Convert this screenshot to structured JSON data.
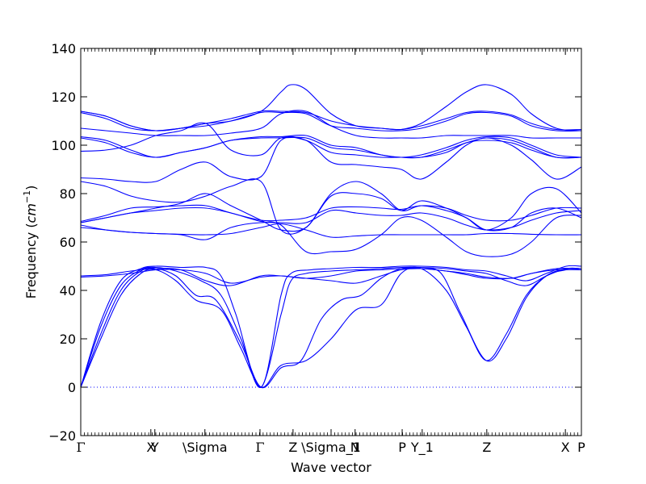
{
  "chart_data": {
    "type": "line",
    "title": "",
    "xlabel": "Wave vector",
    "ylabel": "Frequency ($cm^{-1}$)",
    "ylabel_parts": {
      "text": "Frequency (",
      "unit_base": "cm",
      "unit_exp": "−1",
      "close": ")"
    },
    "ylim": [
      -20,
      140
    ],
    "yticks": [
      -20,
      0,
      20,
      40,
      60,
      80,
      100,
      120,
      140
    ],
    "xlim": [
      0,
      1.0
    ],
    "high_symmetry_points": [
      {
        "label": "Γ",
        "x": 0.0
      },
      {
        "label": "X",
        "x": 0.14
      },
      {
        "label": "Y",
        "x": 0.148
      },
      {
        "label": "\\Sigma",
        "x": 0.248
      },
      {
        "label": "Γ",
        "x": 0.358
      },
      {
        "label": "Z",
        "x": 0.424
      },
      {
        "label": "\\Sigma_1",
        "x": 0.5
      },
      {
        "label": "N",
        "x": 0.548
      },
      {
        "label": "P",
        "x": 0.642
      },
      {
        "label": "Y_1",
        "x": 0.682
      },
      {
        "label": "Z",
        "x": 0.811
      },
      {
        "label": "X",
        "x": 0.968
      },
      {
        "label": "P",
        "x": 1.0
      }
    ],
    "zero_line": {
      "y": 0,
      "style": "dotted"
    },
    "line_color": "#0000ff",
    "grid": false,
    "legend": "none",
    "series": [
      {
        "x": [
          0.0,
          0.04,
          0.08,
          0.12,
          0.15,
          0.19,
          0.23,
          0.28,
          0.32,
          0.36,
          0.4,
          0.45,
          0.5,
          0.55,
          0.6,
          0.64,
          0.68,
          0.73,
          0.77,
          0.81,
          0.85,
          0.89,
          0.93,
          0.97,
          1.0
        ],
        "y": [
          0,
          20,
          38,
          47,
          48.5,
          44,
          36,
          32,
          16,
          0,
          9,
          11,
          20,
          32,
          34,
          47,
          49,
          40,
          25,
          11,
          22,
          38,
          46,
          48.5,
          48.5
        ]
      },
      {
        "x": [
          0.0,
          0.04,
          0.08,
          0.12,
          0.15,
          0.19,
          0.23,
          0.27,
          0.32,
          0.36,
          0.4,
          0.44,
          0.48,
          0.52,
          0.56,
          0.6,
          0.64,
          0.68,
          0.72,
          0.76,
          0.81,
          0.85,
          0.89,
          0.93,
          0.97,
          1.0
        ],
        "y": [
          0,
          22,
          40,
          48,
          49,
          46,
          38,
          36,
          18,
          0,
          8,
          11,
          28,
          36,
          38,
          45,
          49,
          49,
          47,
          30,
          11,
          20,
          37,
          46,
          49,
          49
        ]
      },
      {
        "x": [
          0.0,
          0.04,
          0.08,
          0.12,
          0.15,
          0.19,
          0.24,
          0.28,
          0.32,
          0.36,
          0.4,
          0.42,
          0.45,
          0.5,
          0.55,
          0.6,
          0.64,
          0.68,
          0.73,
          0.77,
          0.81,
          0.85,
          0.89,
          0.93,
          0.97,
          1.0
        ],
        "y": [
          0,
          25,
          42,
          48.5,
          49.5,
          48,
          44,
          38,
          20,
          0,
          30,
          44,
          47,
          48,
          48.5,
          49,
          49.5,
          49.5,
          49,
          48,
          47,
          44,
          42,
          46,
          49,
          49
        ]
      },
      {
        "x": [
          0.0,
          0.04,
          0.08,
          0.12,
          0.15,
          0.2,
          0.25,
          0.28,
          0.31,
          0.36,
          0.4,
          0.42,
          0.46,
          0.5,
          0.55,
          0.6,
          0.64,
          0.68,
          0.73,
          0.77,
          0.81,
          0.85,
          0.89,
          0.93,
          0.97,
          1.0
        ],
        "y": [
          0,
          27,
          44,
          49,
          50,
          49.5,
          49.5,
          46,
          30,
          0,
          38,
          47,
          48.5,
          49,
          49.5,
          49.5,
          50,
          50,
          49.5,
          48.5,
          48,
          46,
          44,
          47,
          50,
          50
        ]
      },
      {
        "x": [
          0.0,
          0.05,
          0.1,
          0.15,
          0.2,
          0.25,
          0.3,
          0.36,
          0.4,
          0.45,
          0.5,
          0.55,
          0.6,
          0.64,
          0.68,
          0.73,
          0.77,
          0.81,
          0.86,
          0.9,
          0.95,
          1.0
        ],
        "y": [
          45.5,
          46,
          47,
          48.5,
          48.5,
          47,
          43,
          45.5,
          46,
          45,
          46,
          48,
          48.5,
          49,
          49,
          48,
          46.5,
          45,
          45,
          47,
          48.5,
          48.5
        ]
      },
      {
        "x": [
          0.0,
          0.05,
          0.1,
          0.15,
          0.2,
          0.25,
          0.3,
          0.36,
          0.4,
          0.45,
          0.5,
          0.55,
          0.6,
          0.64,
          0.68,
          0.73,
          0.77,
          0.81,
          0.86,
          0.9,
          0.95,
          1.0
        ],
        "y": [
          46,
          46.5,
          48,
          49,
          48.5,
          44,
          42,
          46,
          46,
          45,
          44,
          43,
          46,
          48.5,
          49,
          48,
          47,
          45.5,
          45,
          47,
          49,
          49
        ]
      },
      {
        "x": [
          0.0,
          0.05,
          0.1,
          0.15,
          0.2,
          0.25,
          0.3,
          0.36,
          0.4,
          0.45,
          0.5,
          0.55,
          0.6,
          0.64,
          0.68,
          0.73,
          0.77,
          0.81,
          0.86,
          0.9,
          0.95,
          1.0
        ],
        "y": [
          66,
          65,
          64,
          63.5,
          63.2,
          63,
          63.5,
          66,
          67.5,
          65,
          62,
          62.5,
          63,
          63,
          63,
          63,
          63,
          63.5,
          63.5,
          63.2,
          63,
          63
        ]
      },
      {
        "x": [
          0.0,
          0.05,
          0.1,
          0.15,
          0.2,
          0.25,
          0.3,
          0.36,
          0.4,
          0.45,
          0.5,
          0.55,
          0.6,
          0.64,
          0.68,
          0.73,
          0.77,
          0.81,
          0.86,
          0.9,
          0.95,
          1.0
        ],
        "y": [
          67,
          65,
          64,
          63.5,
          63,
          61,
          66,
          68,
          67,
          56,
          56,
          57,
          63,
          70,
          69,
          62,
          56,
          54,
          55,
          60,
          70,
          71
        ]
      },
      {
        "x": [
          0.0,
          0.05,
          0.1,
          0.15,
          0.2,
          0.25,
          0.3,
          0.36,
          0.4,
          0.45,
          0.5,
          0.55,
          0.6,
          0.64,
          0.68,
          0.73,
          0.77,
          0.81,
          0.86,
          0.9,
          0.95,
          1.0
        ],
        "y": [
          68,
          70,
          72,
          73,
          74,
          74,
          72,
          68.5,
          68,
          68,
          73,
          72,
          71,
          71,
          72,
          70,
          67,
          65,
          66,
          69,
          72,
          73
        ]
      },
      {
        "x": [
          0.0,
          0.05,
          0.1,
          0.15,
          0.2,
          0.25,
          0.3,
          0.36,
          0.4,
          0.45,
          0.5,
          0.55,
          0.6,
          0.64,
          0.68,
          0.73,
          0.77,
          0.81,
          0.86,
          0.9,
          0.95,
          1.0
        ],
        "y": [
          68.5,
          71,
          74,
          74.5,
          75,
          75,
          72,
          69,
          69,
          70,
          74,
          74.5,
          74,
          73.5,
          75,
          74,
          71,
          69,
          69,
          71,
          74,
          74
        ]
      },
      {
        "x": [
          0.0,
          0.05,
          0.1,
          0.15,
          0.2,
          0.25,
          0.3,
          0.36,
          0.4,
          0.45,
          0.5,
          0.55,
          0.6,
          0.64,
          0.68,
          0.73,
          0.77,
          0.81,
          0.86,
          0.9,
          0.95,
          1.0
        ],
        "y": [
          68,
          70,
          72,
          74,
          76,
          80,
          75,
          69,
          65,
          66,
          79,
          80,
          78,
          73,
          77,
          74,
          70,
          65,
          70,
          80,
          82,
          72
        ]
      },
      {
        "x": [
          0.0,
          0.05,
          0.1,
          0.15,
          0.2,
          0.25,
          0.3,
          0.36,
          0.4,
          0.45,
          0.5,
          0.55,
          0.6,
          0.64,
          0.68,
          0.73,
          0.77,
          0.81,
          0.86,
          0.9,
          0.95,
          1.0
        ],
        "y": [
          85,
          83,
          79,
          77,
          76.5,
          79,
          83,
          85,
          65,
          66,
          80,
          85,
          80,
          73,
          75,
          73,
          70,
          65,
          66,
          72,
          74,
          70
        ]
      },
      {
        "x": [
          0.0,
          0.05,
          0.1,
          0.15,
          0.2,
          0.25,
          0.3,
          0.36,
          0.4,
          0.45,
          0.5,
          0.55,
          0.6,
          0.64,
          0.68,
          0.73,
          0.77,
          0.81,
          0.86,
          0.9,
          0.95,
          1.0
        ],
        "y": [
          86.5,
          86,
          85,
          85,
          90,
          93,
          87,
          87,
          102,
          102,
          93,
          92,
          91,
          90,
          86,
          93,
          100,
          103,
          100,
          94,
          86,
          91
        ]
      },
      {
        "x": [
          0.0,
          0.05,
          0.1,
          0.15,
          0.2,
          0.25,
          0.3,
          0.36,
          0.4,
          0.45,
          0.5,
          0.55,
          0.6,
          0.64,
          0.68,
          0.73,
          0.77,
          0.81,
          0.86,
          0.9,
          0.95,
          1.0
        ],
        "y": [
          97.5,
          98,
          100,
          104,
          106,
          109,
          98,
          96,
          103,
          102,
          97,
          96,
          95,
          95,
          95,
          97,
          101,
          102,
          101,
          98,
          95,
          95
        ]
      },
      {
        "x": [
          0.0,
          0.05,
          0.1,
          0.15,
          0.2,
          0.25,
          0.3,
          0.36,
          0.4,
          0.45,
          0.5,
          0.55,
          0.6,
          0.64,
          0.68,
          0.73,
          0.77,
          0.81,
          0.86,
          0.9,
          0.95,
          1.0
        ],
        "y": [
          103,
          101,
          97,
          95,
          97,
          99,
          102,
          103,
          103,
          103,
          99,
          98,
          96,
          95,
          95,
          98,
          101,
          103,
          102,
          99,
          95,
          95
        ]
      },
      {
        "x": [
          0.0,
          0.05,
          0.1,
          0.15,
          0.2,
          0.25,
          0.3,
          0.36,
          0.4,
          0.45,
          0.5,
          0.55,
          0.6,
          0.64,
          0.68,
          0.73,
          0.77,
          0.81,
          0.86,
          0.9,
          0.95,
          1.0
        ],
        "y": [
          103.5,
          102,
          98,
          95,
          97,
          99,
          102,
          103.5,
          103.5,
          104,
          100,
          99,
          96,
          95,
          96,
          99,
          102,
          103.5,
          103,
          100,
          96,
          95
        ]
      },
      {
        "x": [
          0.0,
          0.05,
          0.1,
          0.15,
          0.2,
          0.25,
          0.3,
          0.36,
          0.4,
          0.45,
          0.5,
          0.55,
          0.6,
          0.64,
          0.68,
          0.73,
          0.77,
          0.81,
          0.86,
          0.9,
          0.95,
          1.0
        ],
        "y": [
          107,
          106,
          105,
          104,
          104,
          104,
          105,
          107,
          113,
          114,
          108,
          104,
          103,
          103,
          103,
          104,
          104,
          104,
          104,
          103,
          103,
          103
        ]
      },
      {
        "x": [
          0.0,
          0.05,
          0.1,
          0.15,
          0.2,
          0.25,
          0.3,
          0.36,
          0.4,
          0.45,
          0.5,
          0.55,
          0.6,
          0.64,
          0.68,
          0.73,
          0.77,
          0.81,
          0.86,
          0.9,
          0.95,
          1.0
        ],
        "y": [
          113.5,
          111,
          107,
          106,
          107,
          108,
          110,
          113.5,
          113.5,
          113,
          108,
          107,
          106,
          106,
          107,
          110,
          113,
          113.5,
          112,
          108,
          106,
          106
        ]
      },
      {
        "x": [
          0.0,
          0.05,
          0.1,
          0.15,
          0.2,
          0.25,
          0.3,
          0.36,
          0.4,
          0.45,
          0.5,
          0.55,
          0.6,
          0.64,
          0.68,
          0.73,
          0.77,
          0.81,
          0.86,
          0.9,
          0.95,
          1.0
        ],
        "y": [
          114,
          112,
          108,
          106,
          107,
          109,
          111,
          114,
          114,
          113.5,
          110,
          108,
          107,
          106.5,
          108,
          111,
          113.5,
          114,
          112.5,
          109,
          106.5,
          106.5
        ]
      },
      {
        "x": [
          0.0,
          0.05,
          0.1,
          0.15,
          0.2,
          0.25,
          0.3,
          0.36,
          0.4,
          0.42,
          0.45,
          0.5,
          0.55,
          0.6,
          0.64,
          0.68,
          0.73,
          0.77,
          0.81,
          0.86,
          0.9,
          0.95,
          1.0
        ],
        "y": [
          114,
          112,
          108,
          106,
          107,
          109,
          110,
          114,
          122,
          125,
          123,
          113,
          108,
          107,
          106.5,
          109,
          116,
          122,
          125,
          121,
          113,
          107,
          106
        ]
      }
    ]
  }
}
